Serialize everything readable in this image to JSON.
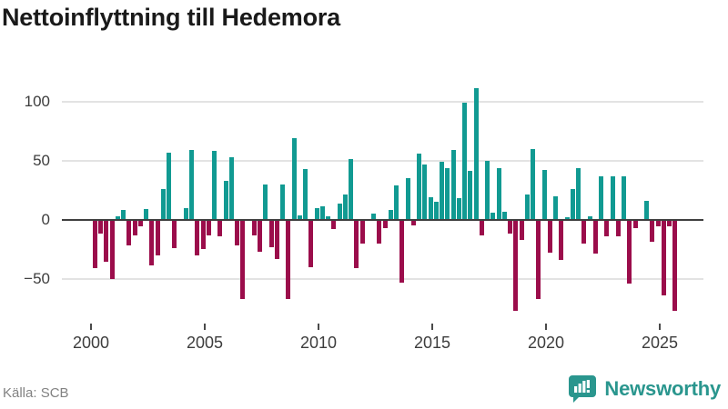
{
  "header": {
    "title": "Nettoinflyttning till Hedemora"
  },
  "footer": {
    "source": "Källa: SCB",
    "brand": "Newsworthy",
    "brand_icon": "bar-chart-speech-bubble-icon"
  },
  "colors": {
    "positive_bar": "#119a92",
    "negative_bar": "#9b0d4b",
    "brand_teal": "#2a968e",
    "grid": "#e3e3e3",
    "zero_line": "#3f3f3f",
    "title_text": "#1a1a1a",
    "axis_text": "#3d3d3d",
    "source_text": "#828282"
  },
  "chart_data": {
    "type": "bar",
    "title": "Nettoinflyttning till Hedemora",
    "ylabel": "",
    "xlabel": "",
    "frequency": "quarterly",
    "x_start": "2000 Q1",
    "x_end": "2025 Q3",
    "ylim": [
      -90,
      120
    ],
    "grid": true,
    "legend": false,
    "y_ticks": [
      {
        "value": 100,
        "label": "100"
      },
      {
        "value": 50,
        "label": "50"
      },
      {
        "value": 0,
        "label": "0"
      },
      {
        "value": -50,
        "label": "−50"
      }
    ],
    "x_ticks": [
      {
        "year": 2000,
        "label": "2000"
      },
      {
        "year": 2005,
        "label": "2005"
      },
      {
        "year": 2010,
        "label": "2010"
      },
      {
        "year": 2015,
        "label": "2015"
      },
      {
        "year": 2020,
        "label": "2020"
      },
      {
        "year": 2025,
        "label": "2025"
      }
    ],
    "values": [
      -41,
      -12,
      -36,
      -50,
      3,
      8,
      -22,
      -13,
      -6,
      9,
      -39,
      -30,
      26,
      57,
      -24,
      0,
      10,
      59,
      -30,
      -25,
      -13,
      58,
      -14,
      33,
      53,
      -22,
      -67,
      0,
      -13,
      -27,
      30,
      -23,
      -33,
      30,
      -67,
      69,
      4,
      43,
      -40,
      10,
      11,
      3,
      -8,
      14,
      21,
      51,
      -41,
      -20,
      0,
      5,
      -20,
      -7,
      8,
      29,
      -53,
      35,
      -5,
      56,
      47,
      19,
      15,
      49,
      44,
      59,
      18,
      99,
      41,
      111,
      -13,
      50,
      6,
      44,
      7,
      -12,
      -77,
      -17,
      21,
      60,
      -67,
      42,
      -28,
      20,
      -34,
      2,
      26,
      44,
      -20,
      3,
      -29,
      37,
      -14,
      37,
      -14,
      37,
      -54,
      -7,
      0,
      16,
      -19,
      -6,
      -64,
      -6,
      -77
    ]
  }
}
